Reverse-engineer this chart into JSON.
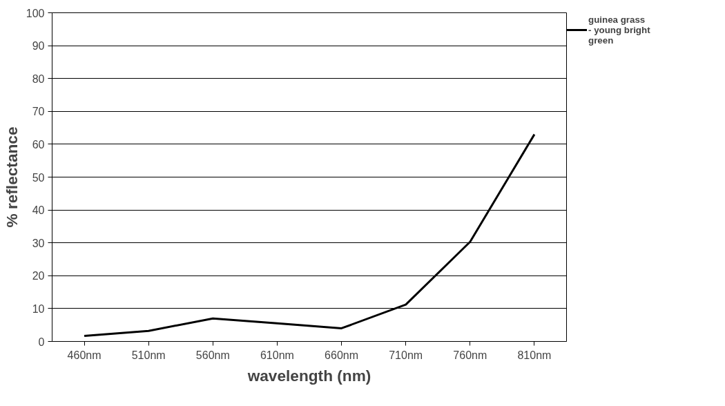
{
  "chart_data": {
    "type": "line",
    "xlabel": "wavelength (nm)",
    "ylabel": "% reflectance",
    "categories": [
      "460nm",
      "510nm",
      "560nm",
      "610nm",
      "660nm",
      "710nm",
      "760nm",
      "810nm"
    ],
    "series": [
      {
        "name": "guinea grass  - young bright green",
        "color": "#000000",
        "values": [
          1.7,
          3.2,
          7.0,
          5.5,
          4.0,
          11.2,
          30.3,
          63.0
        ]
      }
    ],
    "ylim": [
      0,
      100
    ],
    "yticks": [
      0,
      10,
      20,
      30,
      40,
      50,
      60,
      70,
      80,
      90,
      100
    ],
    "grid": "y",
    "legend": "right",
    "marker": "none",
    "line_style": "solid"
  }
}
